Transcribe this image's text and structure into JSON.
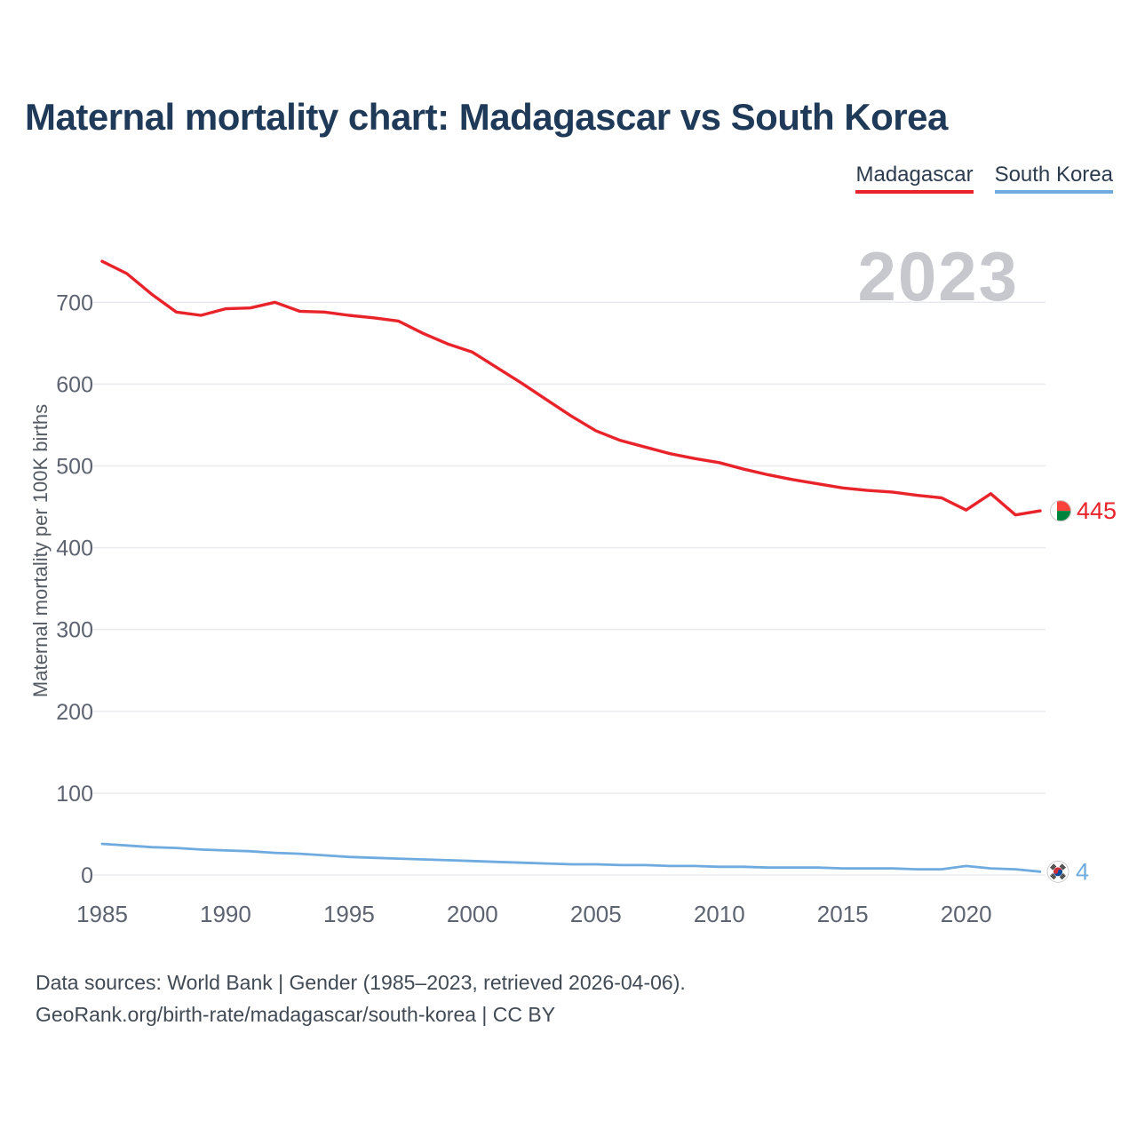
{
  "title": "Maternal mortality chart: Madagascar vs South Korea",
  "watermark": "2023",
  "legend": [
    {
      "label": "Madagascar",
      "color": "#e8232a"
    },
    {
      "label": "South Korea",
      "color": "#6fabdf"
    }
  ],
  "footer": {
    "line1": "Data sources: World Bank | Gender (1985–2023, retrieved 2026-04-06).",
    "line2": "GeoRank.org/birth-rate/madagascar/south-korea | CC BY"
  },
  "chart_data": {
    "type": "line",
    "title": "Maternal mortality chart: Madagascar vs South Korea",
    "xlabel": "",
    "ylabel": "Maternal mortality per 100K births",
    "ylim": [
      0,
      760
    ],
    "yticks": [
      0,
      100,
      200,
      300,
      400,
      500,
      600,
      700
    ],
    "xticks": [
      1985,
      1990,
      1995,
      2000,
      2005,
      2010,
      2015,
      2020
    ],
    "grid": "horizontal",
    "legend_position": "top-right",
    "x": [
      1985,
      1986,
      1987,
      1988,
      1989,
      1990,
      1991,
      1992,
      1993,
      1994,
      1995,
      1996,
      1997,
      1998,
      1999,
      2000,
      2001,
      2002,
      2003,
      2004,
      2005,
      2006,
      2007,
      2008,
      2009,
      2010,
      2011,
      2012,
      2013,
      2014,
      2015,
      2016,
      2017,
      2018,
      2019,
      2020,
      2021,
      2022,
      2023
    ],
    "series": [
      {
        "name": "Madagascar",
        "color": "#e8232a",
        "end_label": "445",
        "flag": "madagascar",
        "values": [
          750,
          735,
          710,
          688,
          684,
          692,
          693,
          700,
          689,
          688,
          684,
          681,
          677,
          662,
          649,
          639,
          620,
          601,
          581,
          561,
          543,
          531,
          523,
          515,
          509,
          504,
          496,
          489,
          483,
          478,
          473,
          470,
          468,
          464,
          461,
          446,
          466,
          440,
          445
        ]
      },
      {
        "name": "South Korea",
        "color": "#6fabdf",
        "end_label": "4",
        "flag": "south-korea",
        "values": [
          38,
          36,
          34,
          33,
          31,
          30,
          29,
          27,
          26,
          24,
          22,
          21,
          20,
          19,
          18,
          17,
          16,
          15,
          14,
          13,
          13,
          12,
          12,
          11,
          11,
          10,
          10,
          9,
          9,
          9,
          8,
          8,
          8,
          7,
          7,
          11,
          8,
          7,
          4
        ]
      }
    ]
  }
}
